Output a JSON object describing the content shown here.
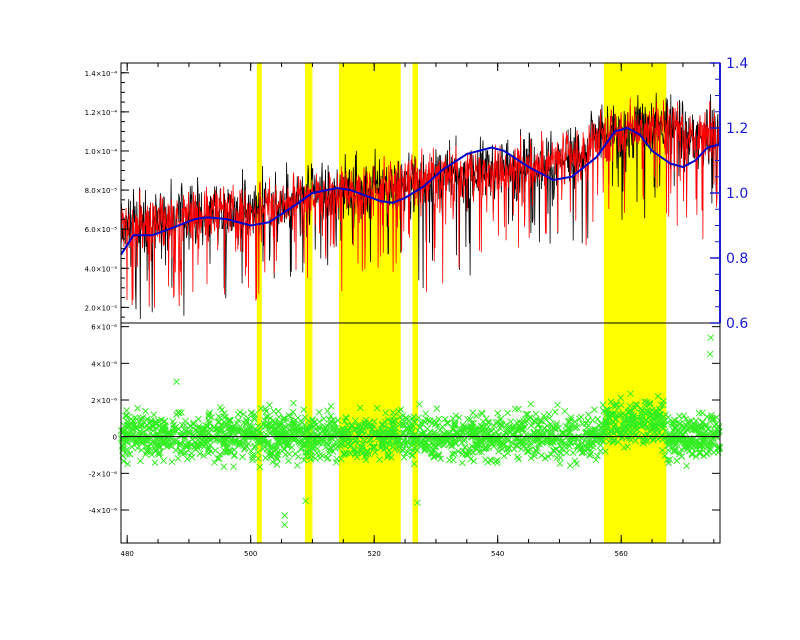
{
  "chart_data": [
    {
      "type": "line",
      "panel": "top",
      "xlim": [
        479,
        576
      ],
      "ylim": [
        1.2e-05,
        0.000145
      ],
      "ylim_right": [
        0.6,
        1.4
      ],
      "series": [
        {
          "color": "#000000",
          "kind": "noisy-spectrum"
        },
        {
          "color": "#ff0000",
          "kind": "noisy-spectrum"
        },
        {
          "color": "#0000cc",
          "axis": "right",
          "x": [
            479,
            481,
            484,
            487,
            491,
            493,
            496,
            500,
            503,
            507,
            510,
            514,
            516,
            521,
            523,
            525,
            528,
            531,
            535,
            539,
            541,
            545,
            549,
            552,
            556,
            559,
            561,
            563,
            565,
            568,
            570,
            572,
            574,
            576
          ],
          "y": [
            0.81,
            0.87,
            0.87,
            0.89,
            0.92,
            0.925,
            0.92,
            0.9,
            0.91,
            0.96,
            1.0,
            1.015,
            1.01,
            0.975,
            0.97,
            0.985,
            1.02,
            1.07,
            1.12,
            1.14,
            1.13,
            1.08,
            1.04,
            1.05,
            1.11,
            1.19,
            1.2,
            1.18,
            1.13,
            1.09,
            1.08,
            1.1,
            1.14,
            1.15
          ]
        }
      ],
      "yticks": [
        {
          "value": 2e-05,
          "label": "2.0×10⁻⁵"
        },
        {
          "value": 4e-05,
          "label": "4.0×10⁻⁵"
        },
        {
          "value": 6e-05,
          "label": "6.0×10⁻⁵"
        },
        {
          "value": 8e-05,
          "label": "8.0×10⁻⁵"
        },
        {
          "value": 0.0001,
          "label": "1.0×10⁻⁴"
        },
        {
          "value": 0.00012,
          "label": "1.2×10⁻⁴"
        },
        {
          "value": 0.00014,
          "label": "1.4×10⁻⁴"
        }
      ],
      "yticks_right": [
        "0.6",
        "0.8",
        "1.0",
        "1.2",
        "1.4"
      ],
      "highlight_bands": [
        [
          501.0,
          501.8
        ],
        [
          508.8,
          510.0
        ],
        [
          514.3,
          524.3
        ],
        [
          526.2,
          527.1
        ],
        [
          557.2,
          567.3
        ]
      ]
    },
    {
      "type": "scatter",
      "panel": "bottom",
      "xlim": [
        479,
        576
      ],
      "ylim": [
        -5.8e-06,
        6.2e-06
      ],
      "series": [
        {
          "color": "#33ee22",
          "marker": "x",
          "kind": "residuals"
        }
      ],
      "reference_line": 0,
      "yticks": [
        {
          "value": -4e-06,
          "label": "-4×10⁻⁶"
        },
        {
          "value": -2e-06,
          "label": "-2×10⁻⁶"
        },
        {
          "value": 0,
          "label": "0"
        },
        {
          "value": 2e-06,
          "label": "2×10⁻⁶"
        },
        {
          "value": 4e-06,
          "label": "4×10⁻⁶"
        },
        {
          "value": 6e-06,
          "label": "6×10⁻⁶"
        }
      ],
      "xticks": [
        "480",
        "500",
        "520",
        "540",
        "560"
      ],
      "highlight_bands": [
        [
          501.0,
          501.8
        ],
        [
          508.8,
          510.0
        ],
        [
          514.3,
          524.3
        ],
        [
          526.2,
          527.1
        ],
        [
          557.2,
          567.3
        ]
      ]
    }
  ],
  "colors": {
    "band": "#ffff00",
    "spectrum_black": "#000000",
    "spectrum_red": "#ff0000",
    "continuum_blue": "#0000cc",
    "residual_green": "#33ee22",
    "right_axis": "#1a1ad0"
  }
}
